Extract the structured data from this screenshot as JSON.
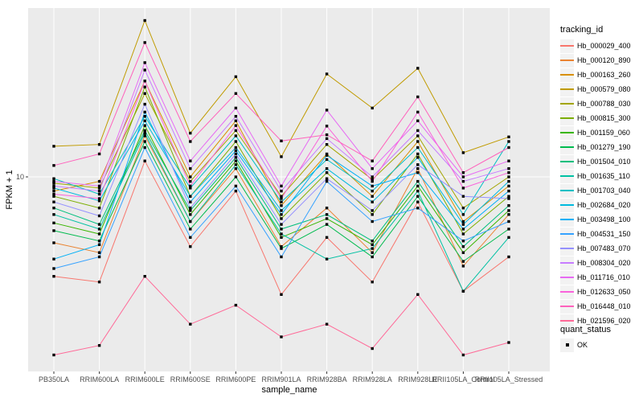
{
  "style": {
    "panel_bg": "#EBEBEB",
    "grid_color": "#FFFFFF",
    "tick_text_color": "#4D4D4D",
    "tick_mark_color": "#333333",
    "marker_color": "#000000",
    "legend_key_bg": "#F2F2F2"
  },
  "legend": {
    "tracking_title": "tracking_id",
    "quant_title": "quant_status",
    "quant_item": "OK"
  },
  "chart_data": {
    "type": "line",
    "title": "",
    "xlabel": "sample_name",
    "ylabel": "FPKM + 1",
    "y_scale": "log10",
    "ytick_label": "10",
    "y_major_gridline": 10,
    "ylim_approx": [
      1.2,
      70
    ],
    "grid": "on",
    "legend_position": "right",
    "marker": {
      "shape": "square",
      "label": "OK"
    },
    "categories": [
      "PB350LA",
      "RRIM600LA",
      "RRIM600LE",
      "RRIM600SE",
      "RRIM600PE",
      "RRIM901LA",
      "RRIM928BA",
      "RRIM928LA",
      "RRIM928LE",
      "RRII105LA_Control",
      "RRII105LA_Stressed"
    ],
    "series": [
      {
        "name": "Hb_000029_400",
        "color": "#F8766D",
        "values": [
          3.2,
          3.0,
          12.0,
          4.5,
          8.5,
          2.6,
          5.0,
          3.0,
          7.5,
          2.7,
          4.0
        ]
      },
      {
        "name": "Hb_000120_890",
        "color": "#EA8331",
        "values": [
          4.7,
          4.2,
          16.0,
          6.0,
          11.0,
          4.5,
          7.0,
          4.2,
          11.0,
          3.6,
          6.5
        ]
      },
      {
        "name": "Hb_000163_260",
        "color": "#D89000",
        "values": [
          8.5,
          9.5,
          30.0,
          10.0,
          19.0,
          7.2,
          13.0,
          8.0,
          15.0,
          6.0,
          9.0
        ]
      },
      {
        "name": "Hb_000579_080",
        "color": "#C09B00",
        "values": [
          14.2,
          14.5,
          60.0,
          16.5,
          31.5,
          12.6,
          32.5,
          22.0,
          34.7,
          13.2,
          15.8
        ]
      },
      {
        "name": "Hb_000788_030",
        "color": "#A3A500",
        "values": [
          9.3,
          8.8,
          26.0,
          9.5,
          17.0,
          8.0,
          14.5,
          9.7,
          16.0,
          7.0,
          10.0
        ]
      },
      {
        "name": "Hb_000815_300",
        "color": "#7CAE00",
        "values": [
          8.0,
          7.0,
          28.0,
          8.0,
          15.0,
          6.2,
          10.5,
          6.5,
          13.0,
          5.2,
          8.0
        ]
      },
      {
        "name": "Hb_001159_060",
        "color": "#39B600",
        "values": [
          5.9,
          5.2,
          18.0,
          6.5,
          12.0,
          5.0,
          6.2,
          4.6,
          9.0,
          4.2,
          6.8
        ]
      },
      {
        "name": "Hb_001279_190",
        "color": "#00BB4E",
        "values": [
          5.4,
          4.8,
          15.0,
          5.5,
          10.0,
          4.4,
          5.8,
          4.0,
          8.0,
          3.8,
          5.5
        ]
      },
      {
        "name": "Hb_001504_010",
        "color": "#00BF7D",
        "values": [
          7.0,
          5.8,
          17.0,
          6.8,
          12.5,
          5.5,
          6.5,
          4.8,
          9.5,
          4.5,
          7.2
        ]
      },
      {
        "name": "Hb_001635_110",
        "color": "#00C1A3",
        "values": [
          6.5,
          5.5,
          16.5,
          6.0,
          11.5,
          5.2,
          3.9,
          4.4,
          8.5,
          2.7,
          5.0
        ]
      },
      {
        "name": "Hb_001703_040",
        "color": "#00BFC4",
        "values": [
          9.8,
          8.2,
          20.0,
          8.8,
          16.0,
          7.5,
          12.2,
          8.5,
          14.0,
          6.5,
          15.0
        ]
      },
      {
        "name": "Hb_002684_020",
        "color": "#00BADE",
        "values": [
          8.8,
          7.6,
          19.0,
          8.0,
          14.0,
          6.8,
          11.0,
          7.5,
          12.5,
          5.8,
          9.5
        ]
      },
      {
        "name": "Hb_003498_100",
        "color": "#00B0F6",
        "values": [
          3.9,
          4.6,
          21.0,
          7.5,
          13.5,
          6.5,
          12.8,
          9.0,
          10.5,
          5.5,
          8.5
        ]
      },
      {
        "name": "Hb_004531_150",
        "color": "#35A2FF",
        "values": [
          3.5,
          4.0,
          14.0,
          5.0,
          9.0,
          4.0,
          9.5,
          6.0,
          7.0,
          4.8,
          6.0
        ]
      },
      {
        "name": "Hb_007483_070",
        "color": "#9590FF",
        "values": [
          7.5,
          6.4,
          23.0,
          7.0,
          13.0,
          5.8,
          9.8,
          6.8,
          11.5,
          8.0,
          7.8
        ]
      },
      {
        "name": "Hb_008304_020",
        "color": "#C77CFF",
        "values": [
          9.0,
          8.5,
          34.0,
          11.0,
          20.0,
          8.5,
          15.5,
          10.0,
          17.0,
          9.5,
          11.0
        ]
      },
      {
        "name": "Hb_011716_010",
        "color": "#E76BF3",
        "values": [
          9.5,
          9.0,
          37.0,
          12.0,
          22.0,
          9.0,
          21.5,
          11.0,
          19.0,
          10.0,
          12.0
        ]
      },
      {
        "name": "Hb_012633_050",
        "color": "#FA62DB",
        "values": [
          8.2,
          7.8,
          30.0,
          9.0,
          18.0,
          7.8,
          17.9,
          9.5,
          21.0,
          8.8,
          10.5
        ]
      },
      {
        "name": "Hb_016448_010",
        "color": "#FF62BC",
        "values": [
          11.4,
          13.0,
          46.6,
          15.0,
          26.0,
          15.1,
          16.2,
          12.0,
          25.0,
          10.5,
          14.0
        ]
      },
      {
        "name": "Hb_021596_020",
        "color": "#FF6A98",
        "values": [
          1.3,
          1.45,
          3.2,
          1.85,
          2.3,
          1.6,
          1.85,
          1.4,
          2.6,
          1.3,
          1.5
        ]
      }
    ]
  }
}
